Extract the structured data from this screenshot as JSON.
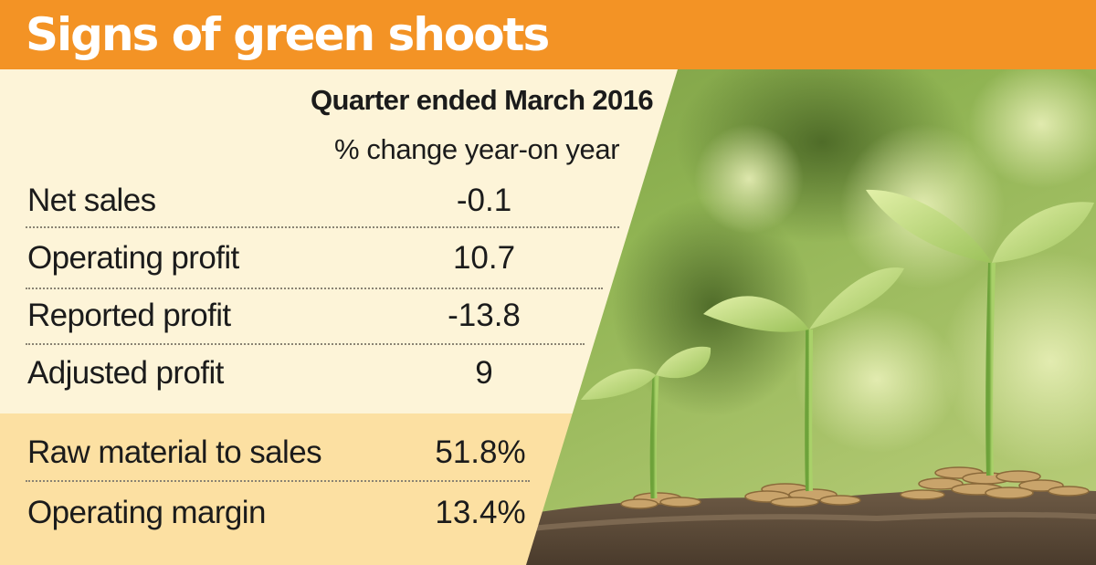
{
  "banner": {
    "title": "Signs of green shoots"
  },
  "colors": {
    "banner": "#f39325",
    "panel_top": "#fdf4d8",
    "panel_bottom": "#fce0a2",
    "text": "#1b1b1b"
  },
  "image": {
    "subject": "seedlings growing from piles of coins in soil"
  },
  "chart_data": {
    "type": "table",
    "column_header": "Quarter ended March 2016",
    "column_subheader": "% change year-on year",
    "rows": [
      {
        "label": "Net sales",
        "value": "-0.1"
      },
      {
        "label": "Operating profit",
        "value": "10.7"
      },
      {
        "label": "Reported profit",
        "value": "-13.8"
      },
      {
        "label": "Adjusted profit",
        "value": "9"
      }
    ],
    "ratios": [
      {
        "label": "Raw material to sales",
        "value": "51.8%"
      },
      {
        "label": "Operating margin",
        "value": "13.4%"
      }
    ]
  }
}
